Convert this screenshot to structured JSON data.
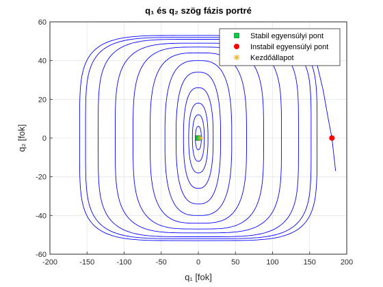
{
  "chart_data": {
    "type": "line",
    "title": "q₁ és q₂ szög fázis portré",
    "xlabel": "q₁ [fok]",
    "ylabel": "q₂ [fok]",
    "xlim": [
      -200,
      200
    ],
    "ylim": [
      -60,
      60
    ],
    "xticks": [
      -200,
      -150,
      -100,
      -50,
      0,
      50,
      100,
      150,
      200
    ],
    "yticks": [
      -60,
      -40,
      -20,
      0,
      20,
      40,
      60
    ],
    "grid": true,
    "legend_position": "top-right",
    "series": [
      {
        "name": "",
        "kind": "trajectory",
        "color": "#0000ff",
        "cycles": [
          {
            "rx": 4,
            "ry": 6
          },
          {
            "rx": 8,
            "ry": 12
          },
          {
            "rx": 13,
            "ry": 18
          },
          {
            "rx": 20,
            "ry": 26
          },
          {
            "rx": 30,
            "ry": 34
          },
          {
            "rx": 45,
            "ry": 40
          },
          {
            "rx": 65,
            "ry": 44
          },
          {
            "rx": 88,
            "ry": 47
          },
          {
            "rx": 112,
            "ry": 49
          },
          {
            "rx": 135,
            "ry": 51
          },
          {
            "rx": 152,
            "ry": 52
          },
          {
            "rx": 160,
            "ry": 53
          }
        ],
        "tail": {
          "x": [
            160,
            168,
            175,
            180,
            185
          ],
          "y": [
            38,
            25,
            10,
            0,
            -17
          ]
        }
      },
      {
        "name": "Stabil egyensúlyi pont",
        "kind": "marker",
        "marker": "square",
        "color": "#00cc44",
        "x": [
          0
        ],
        "y": [
          0
        ]
      },
      {
        "name": "Instabil egyensúlyi pont",
        "kind": "marker",
        "marker": "circle",
        "color": "#ff0000",
        "x": [
          180
        ],
        "y": [
          0
        ]
      },
      {
        "name": "Kezdőállapot",
        "kind": "marker",
        "marker": "asterisk",
        "color": "#edb120",
        "x": [
          3
        ],
        "y": [
          0
        ]
      }
    ]
  }
}
